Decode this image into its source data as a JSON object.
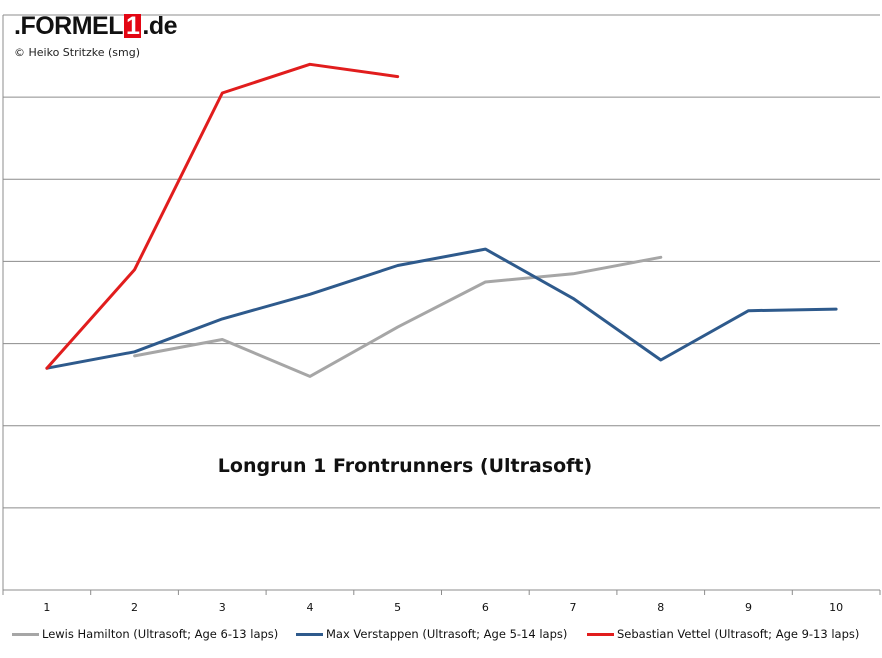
{
  "logo": {
    "pre": ".FORMEL",
    "one": "1",
    "post": ".de"
  },
  "copyright": "© Heiko Stritzke (smg)",
  "chart_data": {
    "type": "line",
    "title": "Longrun 1 Frontrunners (Ultrasoft)",
    "categories": [
      "1",
      "2",
      "3",
      "4",
      "5",
      "6",
      "7",
      "8",
      "9",
      "10"
    ],
    "xlabel": "",
    "ylabel": "",
    "grid": true,
    "legend_position": "bottom",
    "series": [
      {
        "name": "Lewis Hamilton (Ultrasoft; Age 6-13 laps)",
        "color": "#a6a6a6",
        "values": [
          null,
          2.85,
          3.05,
          2.6,
          3.2,
          3.75,
          3.85,
          4.05,
          null,
          null
        ]
      },
      {
        "name": "Max Verstappen (Ultrasoft; Age 5-14 laps)",
        "color": "#2e5a8c",
        "values": [
          2.7,
          2.9,
          3.3,
          3.6,
          3.95,
          4.15,
          3.55,
          2.8,
          3.4,
          3.42
        ]
      },
      {
        "name": "Sebastian Vettel (Ultrasoft; Age 9-13 laps)",
        "color": "#e11d1d",
        "values": [
          2.7,
          3.9,
          6.05,
          6.4,
          6.25,
          null,
          null,
          null,
          null,
          null
        ]
      }
    ]
  }
}
